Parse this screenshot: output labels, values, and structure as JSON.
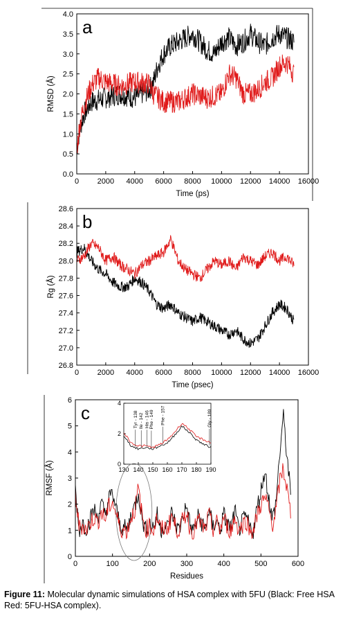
{
  "chart_data": [
    {
      "type": "line",
      "panel_label": "a",
      "xlabel": "Time (ps)",
      "ylabel": "RMSD (Å)",
      "xlim": [
        0,
        16000
      ],
      "ylim": [
        0.0,
        4.0
      ],
      "xticks": [
        0,
        2000,
        4000,
        6000,
        8000,
        10000,
        12000,
        14000,
        16000
      ],
      "yticks": [
        "0.0",
        "0.5",
        "1.0",
        "1.5",
        "2.0",
        "2.5",
        "3.0",
        "3.5",
        "4.0"
      ],
      "series": [
        {
          "color": "#000000",
          "x": [
            0,
            200,
            500,
            1000,
            1500,
            2000,
            3000,
            4000,
            5000,
            5300,
            5600,
            6000,
            6500,
            7000,
            7500,
            8000,
            8500,
            9000,
            9500,
            10000,
            10500,
            11000,
            11500,
            12000,
            12500,
            13000,
            13500,
            14000,
            14500,
            15000
          ],
          "y": [
            0.6,
            1.1,
            1.5,
            1.8,
            1.85,
            1.9,
            2.0,
            1.9,
            2.1,
            2.3,
            2.7,
            3.0,
            3.2,
            3.3,
            3.4,
            3.5,
            3.3,
            3.1,
            3.0,
            3.3,
            3.4,
            3.2,
            3.3,
            3.5,
            3.3,
            3.2,
            3.4,
            3.5,
            3.4,
            3.3
          ]
        },
        {
          "color": "#e01a1a",
          "x": [
            0,
            200,
            500,
            1000,
            1500,
            2000,
            3000,
            4000,
            5000,
            5300,
            6000,
            7000,
            8000,
            9000,
            10000,
            10500,
            11000,
            11500,
            12000,
            12500,
            13000,
            13500,
            14000,
            14500,
            15000
          ],
          "y": [
            0.6,
            1.2,
            1.7,
            2.2,
            2.4,
            2.3,
            2.2,
            2.3,
            2.25,
            2.0,
            1.8,
            1.8,
            2.0,
            1.9,
            2.0,
            2.5,
            2.4,
            2.0,
            2.0,
            2.1,
            2.3,
            2.4,
            2.7,
            2.8,
            2.5
          ]
        }
      ]
    },
    {
      "type": "line",
      "panel_label": "b",
      "xlabel": "Time (psec)",
      "ylabel": "Rg (Å)",
      "xlim": [
        0,
        16000
      ],
      "ylim": [
        26.8,
        28.6
      ],
      "xticks": [
        0,
        2000,
        4000,
        6000,
        8000,
        10000,
        12000,
        14000,
        16000
      ],
      "yticks": [
        "26.8",
        "27.0",
        "27.2",
        "27.4",
        "27.6",
        "27.8",
        "28.0",
        "28.2",
        "28.4",
        "28.6"
      ],
      "series": [
        {
          "color": "#000000",
          "x": [
            0,
            500,
            1000,
            1500,
            2000,
            2500,
            3000,
            3500,
            4000,
            4500,
            5000,
            5500,
            6000,
            6500,
            7000,
            7500,
            8000,
            8500,
            9000,
            9500,
            10000,
            10500,
            11000,
            11500,
            12000,
            12500,
            13000,
            13500,
            14000,
            14500,
            15000
          ],
          "y": [
            28.1,
            28.15,
            28.0,
            27.9,
            27.85,
            27.75,
            27.7,
            27.7,
            27.8,
            27.75,
            27.65,
            27.5,
            27.45,
            27.5,
            27.4,
            27.35,
            27.3,
            27.35,
            27.3,
            27.25,
            27.2,
            27.15,
            27.2,
            27.1,
            27.05,
            27.1,
            27.25,
            27.4,
            27.5,
            27.45,
            27.3
          ]
        },
        {
          "color": "#e01a1a",
          "x": [
            0,
            500,
            1000,
            1500,
            2000,
            2500,
            3000,
            3500,
            4000,
            4500,
            5000,
            5500,
            6000,
            6500,
            7000,
            7500,
            8000,
            8500,
            9000,
            9500,
            10000,
            10500,
            11000,
            11500,
            12000,
            12500,
            13000,
            13500,
            14000,
            14500,
            15000
          ],
          "y": [
            28.0,
            28.05,
            28.2,
            28.15,
            28.0,
            28.05,
            27.95,
            27.9,
            27.85,
            27.95,
            28.0,
            28.05,
            28.1,
            28.25,
            28.0,
            27.9,
            27.85,
            27.8,
            27.9,
            28.0,
            27.95,
            28.0,
            27.9,
            28.05,
            28.0,
            27.95,
            28.05,
            28.1,
            28.0,
            28.05,
            27.95
          ]
        }
      ]
    },
    {
      "type": "line",
      "panel_label": "c",
      "xlabel": "Residues",
      "ylabel": "RMSF (Å)",
      "xlim": [
        0,
        600
      ],
      "ylim": [
        0,
        6
      ],
      "xticks": [
        0,
        100,
        200,
        300,
        400,
        500,
        600
      ],
      "yticks": [
        "0",
        "1",
        "2",
        "3",
        "4",
        "5",
        "6"
      ],
      "series": [
        {
          "color": "#000000",
          "x": [
            0,
            10,
            20,
            30,
            40,
            50,
            60,
            70,
            80,
            90,
            100,
            110,
            120,
            130,
            140,
            150,
            160,
            170,
            180,
            190,
            200,
            210,
            220,
            230,
            240,
            250,
            260,
            270,
            280,
            290,
            300,
            310,
            320,
            330,
            340,
            350,
            360,
            370,
            380,
            390,
            400,
            410,
            420,
            430,
            440,
            450,
            460,
            470,
            480,
            490,
            500,
            510,
            520,
            530,
            540,
            550,
            560,
            570,
            580
          ],
          "y": [
            2.6,
            1.0,
            1.3,
            1.1,
            1.4,
            1.8,
            1.5,
            2.0,
            1.6,
            2.2,
            2.4,
            1.8,
            1.2,
            1.1,
            1.0,
            1.6,
            1.9,
            2.5,
            1.4,
            1.0,
            1.3,
            1.1,
            1.6,
            1.0,
            1.2,
            1.1,
            1.7,
            1.2,
            1.0,
            1.6,
            1.9,
            1.1,
            1.0,
            1.5,
            1.3,
            1.0,
            1.8,
            1.1,
            1.4,
            1.0,
            1.6,
            1.2,
            1.1,
            1.7,
            1.0,
            1.3,
            1.5,
            1.1,
            1.0,
            1.9,
            2.5,
            3.3,
            2.4,
            1.4,
            2.0,
            3.8,
            5.4,
            3.9,
            2.3
          ]
        },
        {
          "color": "#e01a1a",
          "x": [
            0,
            10,
            20,
            30,
            40,
            50,
            60,
            70,
            80,
            90,
            100,
            110,
            120,
            130,
            140,
            150,
            160,
            170,
            180,
            190,
            200,
            210,
            220,
            230,
            240,
            250,
            260,
            270,
            280,
            290,
            300,
            310,
            320,
            330,
            340,
            350,
            360,
            370,
            380,
            390,
            400,
            410,
            420,
            430,
            440,
            450,
            460,
            470,
            480,
            490,
            500,
            510,
            520,
            530,
            540,
            550,
            560,
            570,
            580
          ],
          "y": [
            2.4,
            1.1,
            1.2,
            1.0,
            1.3,
            1.5,
            1.3,
            1.7,
            1.4,
            1.9,
            2.1,
            1.6,
            1.1,
            1.0,
            1.0,
            1.5,
            1.8,
            2.6,
            1.5,
            1.0,
            1.2,
            1.0,
            1.5,
            1.0,
            1.1,
            1.1,
            1.6,
            1.1,
            1.0,
            1.4,
            1.7,
            1.0,
            1.0,
            1.4,
            1.2,
            1.0,
            1.6,
            1.0,
            1.3,
            1.0,
            1.5,
            1.1,
            1.0,
            1.5,
            1.0,
            1.2,
            1.4,
            1.0,
            1.0,
            1.6,
            2.0,
            2.2,
            1.9,
            1.2,
            1.7,
            2.8,
            3.4,
            2.6,
            1.6
          ]
        }
      ],
      "inset": {
        "xlim": [
          130,
          190
        ],
        "ylim": [
          0,
          4
        ],
        "xticks": [
          130,
          140,
          150,
          160,
          170,
          180,
          190
        ],
        "yticks": [
          "0",
          "2",
          "4"
        ],
        "annotations": [
          {
            "label": "Tyr - 138",
            "x": 138
          },
          {
            "label": "Ile - 142",
            "x": 142
          },
          {
            "label": "His - 146",
            "x": 146
          },
          {
            "label": "Phe - 149",
            "x": 149
          },
          {
            "label": "Phe - 157",
            "x": 157
          },
          {
            "label": "Gly - 189",
            "x": 189
          }
        ],
        "series": [
          {
            "color": "#000000",
            "x": [
              130,
              135,
              140,
              145,
              150,
              155,
              160,
              165,
              170,
              175,
              180,
              185,
              190
            ],
            "y": [
              1.9,
              1.2,
              1.0,
              1.1,
              1.0,
              1.2,
              1.4,
              1.9,
              2.5,
              2.1,
              1.6,
              1.3,
              1.1
            ]
          },
          {
            "color": "#e01a1a",
            "x": [
              130,
              135,
              140,
              145,
              150,
              155,
              160,
              165,
              170,
              175,
              180,
              185,
              190
            ],
            "y": [
              2.1,
              1.4,
              1.2,
              1.2,
              1.1,
              1.3,
              1.6,
              2.1,
              2.7,
              2.3,
              1.8,
              1.6,
              1.4
            ]
          }
        ]
      }
    }
  ],
  "caption": {
    "label": "Figure 11:",
    "text": " Molecular dynamic simulations of HSA complex with 5FU (Black: Free HSA Red: 5FU-HSA complex)."
  }
}
